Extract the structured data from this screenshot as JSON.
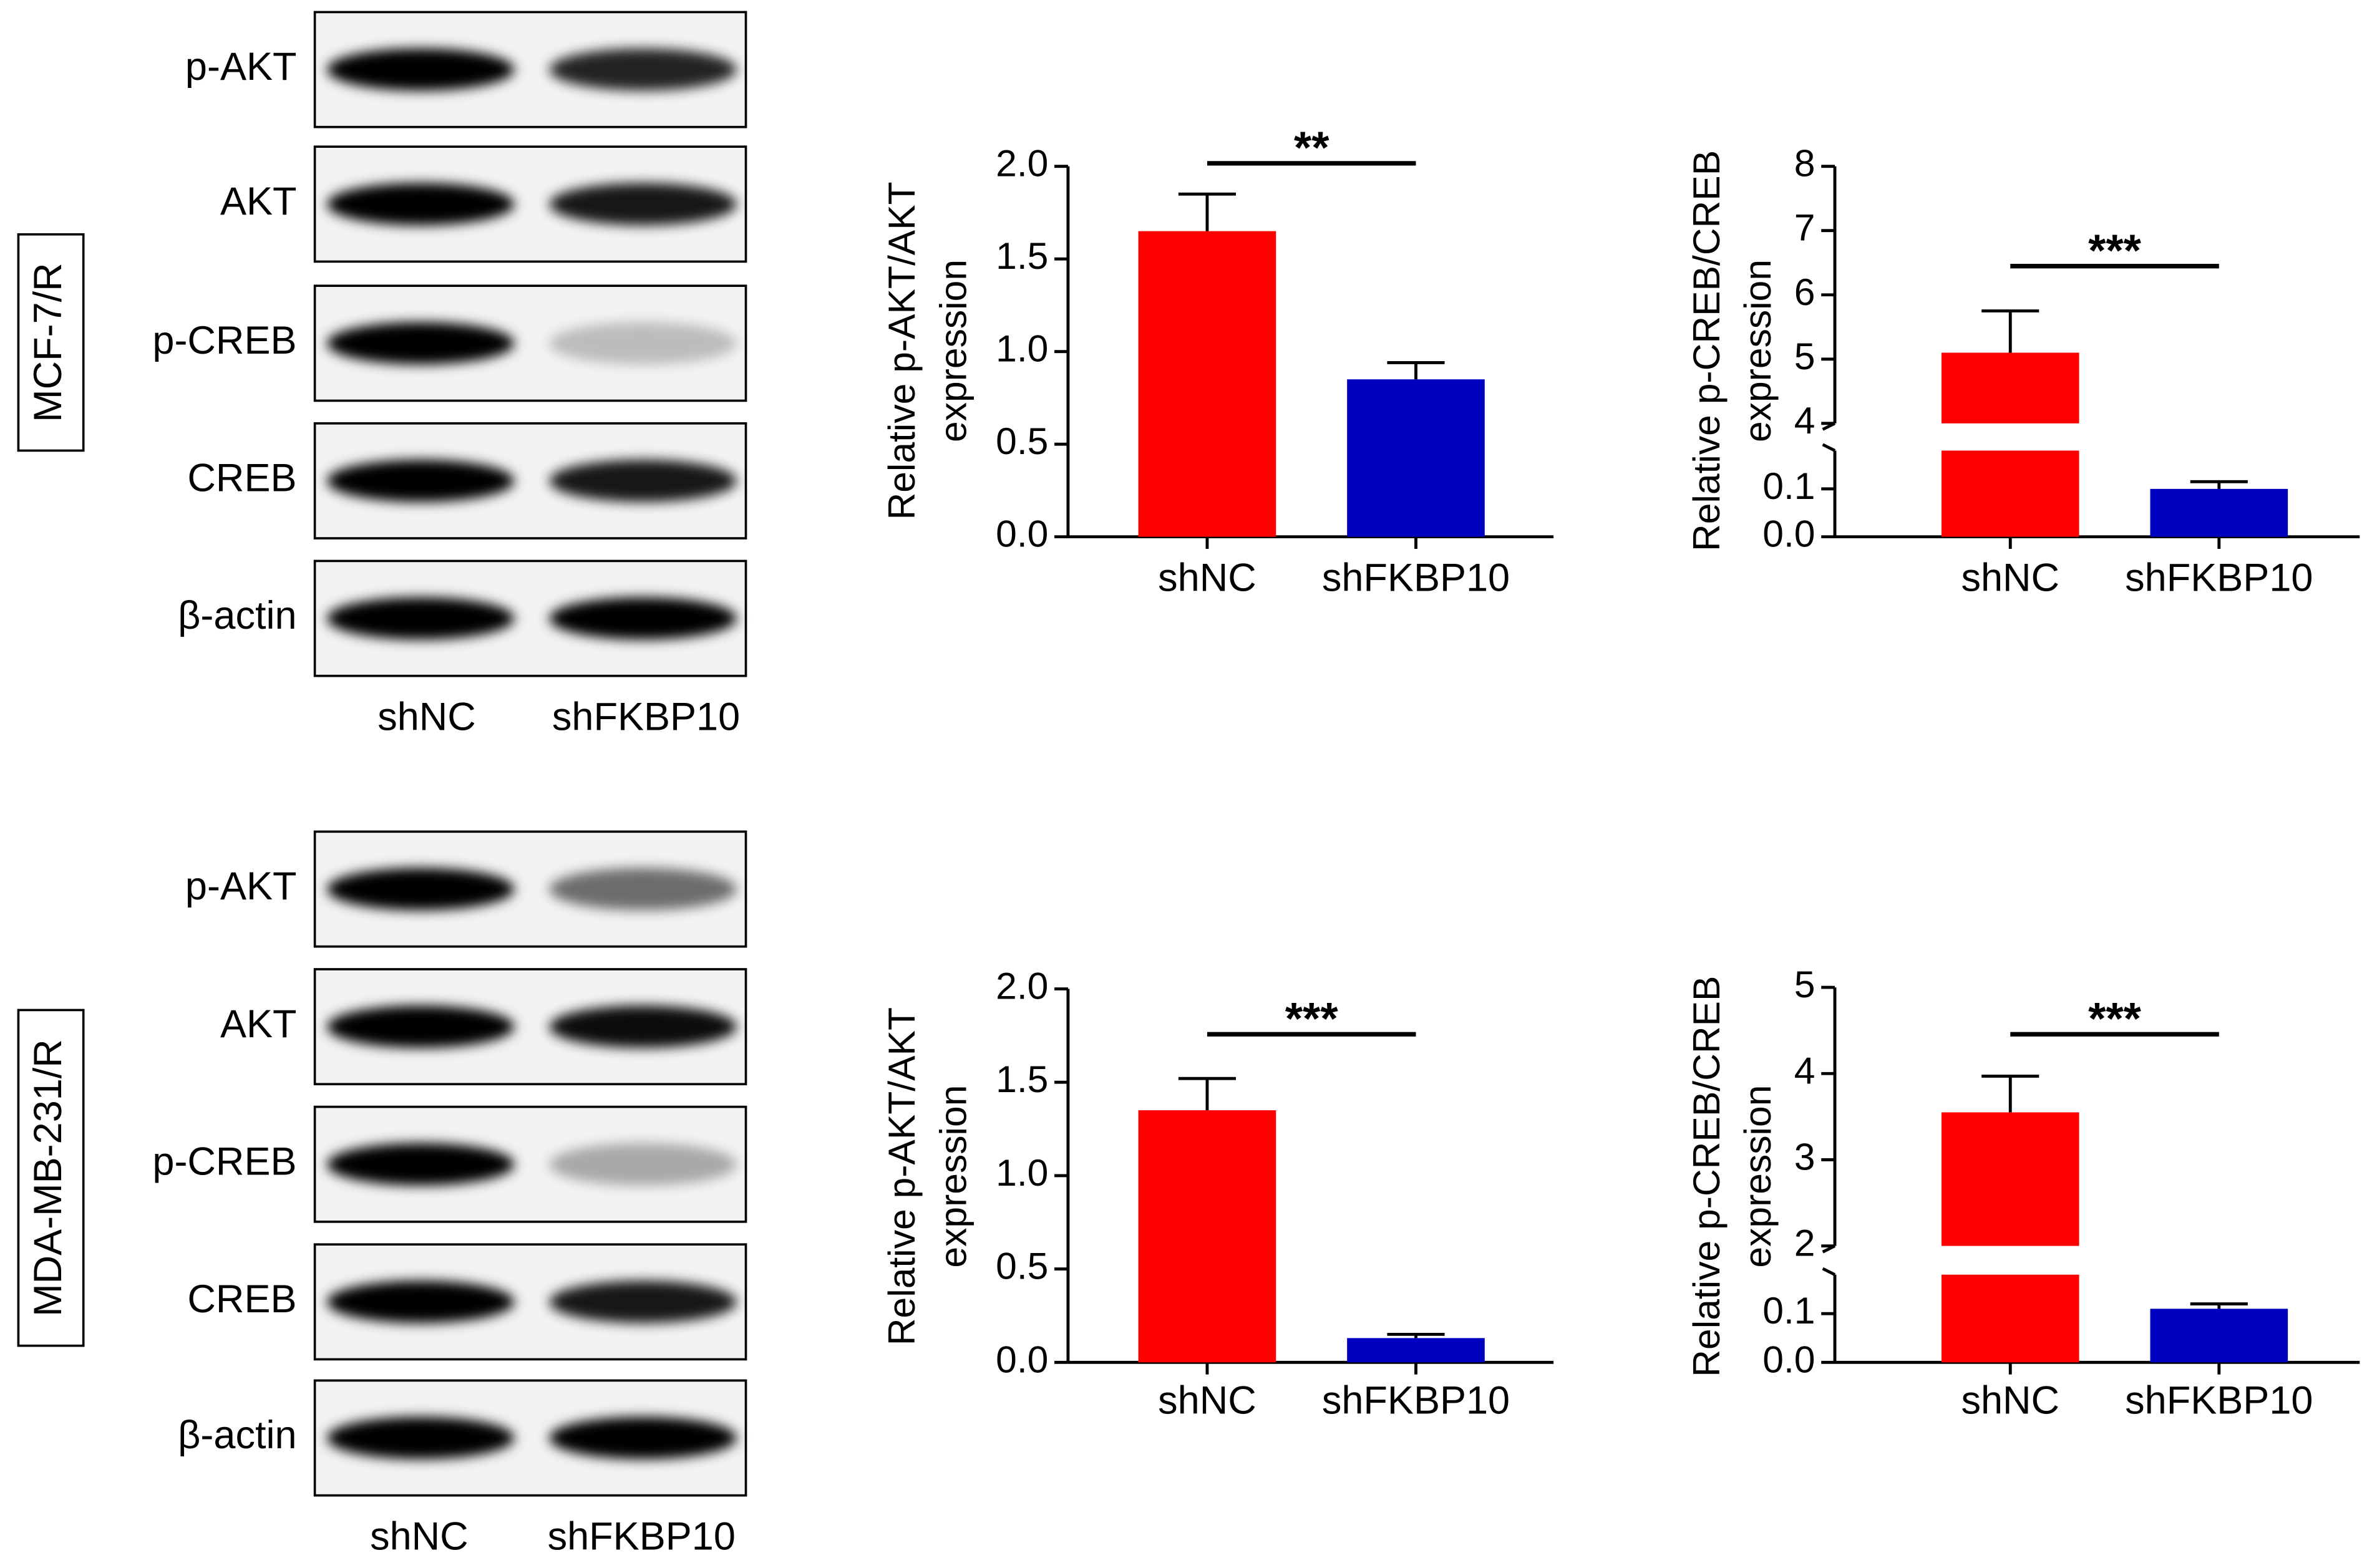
{
  "blots": [
    {
      "cell_line": "MCF-7/R",
      "rows": [
        "p-AKT",
        "AKT",
        "p-CREB",
        "CREB",
        "β-actin"
      ],
      "lanes": [
        "shNC",
        "shFKBP10"
      ]
    },
    {
      "cell_line": "MDA-MB-231/R",
      "rows": [
        "p-AKT",
        "AKT",
        "p-CREB",
        "CREB",
        "β-actin"
      ],
      "lanes": [
        "shNC",
        "shFKBP10"
      ]
    }
  ],
  "chart_data": [
    {
      "type": "bar",
      "ylabel": [
        "Relative p-AKT/AKT",
        "expression"
      ],
      "categories": [
        "shNC",
        "shFKBP10"
      ],
      "values": [
        1.65,
        0.85
      ],
      "errors": [
        0.2,
        0.09
      ],
      "colors": [
        "#ff0000",
        "#0000c0"
      ],
      "significance": "**",
      "segments": [
        {
          "ylim": [
            0,
            2
          ],
          "yticks": [
            {
              "value": 0,
              "label": "0.0"
            },
            {
              "value": 0.5,
              "label": "0.5"
            },
            {
              "value": 1,
              "label": "1.0"
            },
            {
              "value": 1.5,
              "label": "1.5"
            },
            {
              "value": 2,
              "label": "2.0"
            }
          ]
        }
      ]
    },
    {
      "type": "bar",
      "ylabel": [
        "Relative p-CREB/CREB",
        "expression"
      ],
      "categories": [
        "shNC",
        "shFKBP10"
      ],
      "values": [
        5.1,
        0.1
      ],
      "errors": [
        0.65,
        0.015
      ],
      "colors": [
        "#ff0000",
        "#0000c0"
      ],
      "significance": "***",
      "segments": [
        {
          "ylim": [
            0,
            0.18
          ],
          "yticks": [
            {
              "value": 0,
              "label": "0.0"
            },
            0.1
          ]
        },
        {
          "ylim": [
            4,
            8
          ],
          "yticks": [
            4,
            5,
            6,
            7,
            8
          ]
        }
      ]
    },
    {
      "type": "bar",
      "ylabel": [
        "Relative p-AKT/AKT",
        "expression"
      ],
      "categories": [
        "shNC",
        "shFKBP10"
      ],
      "values": [
        1.35,
        0.13
      ],
      "errors": [
        0.17,
        0.02
      ],
      "colors": [
        "#ff0000",
        "#0000c0"
      ],
      "significance": "***",
      "segments": [
        {
          "ylim": [
            0,
            2
          ],
          "yticks": [
            {
              "value": 0,
              "label": "0.0"
            },
            {
              "value": 0.5,
              "label": "0.5"
            },
            {
              "value": 1,
              "label": "1.0"
            },
            {
              "value": 1.5,
              "label": "1.5"
            },
            {
              "value": 2,
              "label": "2.0"
            }
          ]
        }
      ]
    },
    {
      "type": "bar",
      "ylabel": [
        "Relative p-CREB/CREB",
        "expression"
      ],
      "categories": [
        "shNC",
        "shFKBP10"
      ],
      "values": [
        3.55,
        0.11
      ],
      "errors": [
        0.42,
        0.01
      ],
      "colors": [
        "#ff0000",
        "#0000c0"
      ],
      "significance": "***",
      "segments": [
        {
          "ylim": [
            0,
            0.18
          ],
          "yticks": [
            {
              "value": 0,
              "label": "0.0"
            },
            0.1
          ]
        },
        {
          "ylim": [
            2,
            5
          ],
          "yticks": [
            2,
            3,
            4,
            5
          ]
        }
      ]
    }
  ]
}
